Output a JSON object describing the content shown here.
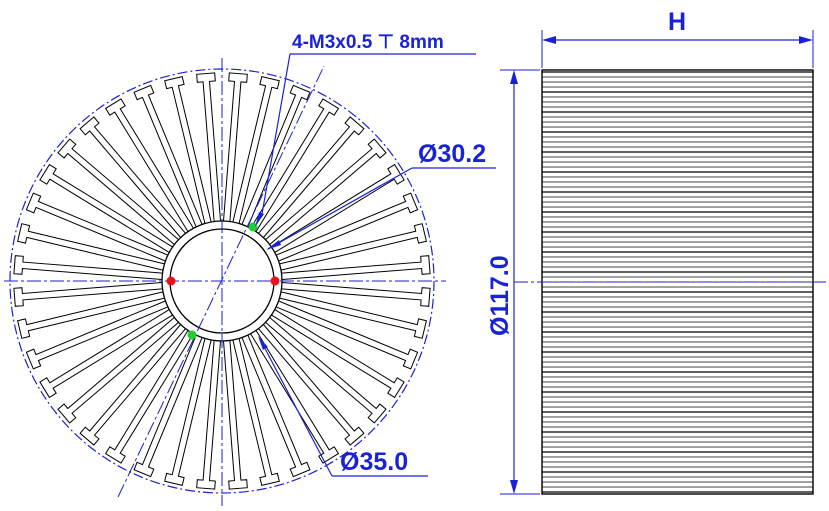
{
  "drawing": {
    "front_view": {
      "fin_count": 40,
      "thread_callout": "4-M3x0.5 ⊤ 8mm",
      "inner_diameter_label": "Ø30.2",
      "bore_diameter_label": "Ø35.0"
    },
    "side_view": {
      "height_label": "H",
      "outer_diameter_label": "Ø117.0"
    },
    "colors": {
      "outline": "#000000",
      "dimension": "#1a22d6",
      "hole_red": "#ee1111",
      "hole_green": "#22cc33"
    }
  }
}
